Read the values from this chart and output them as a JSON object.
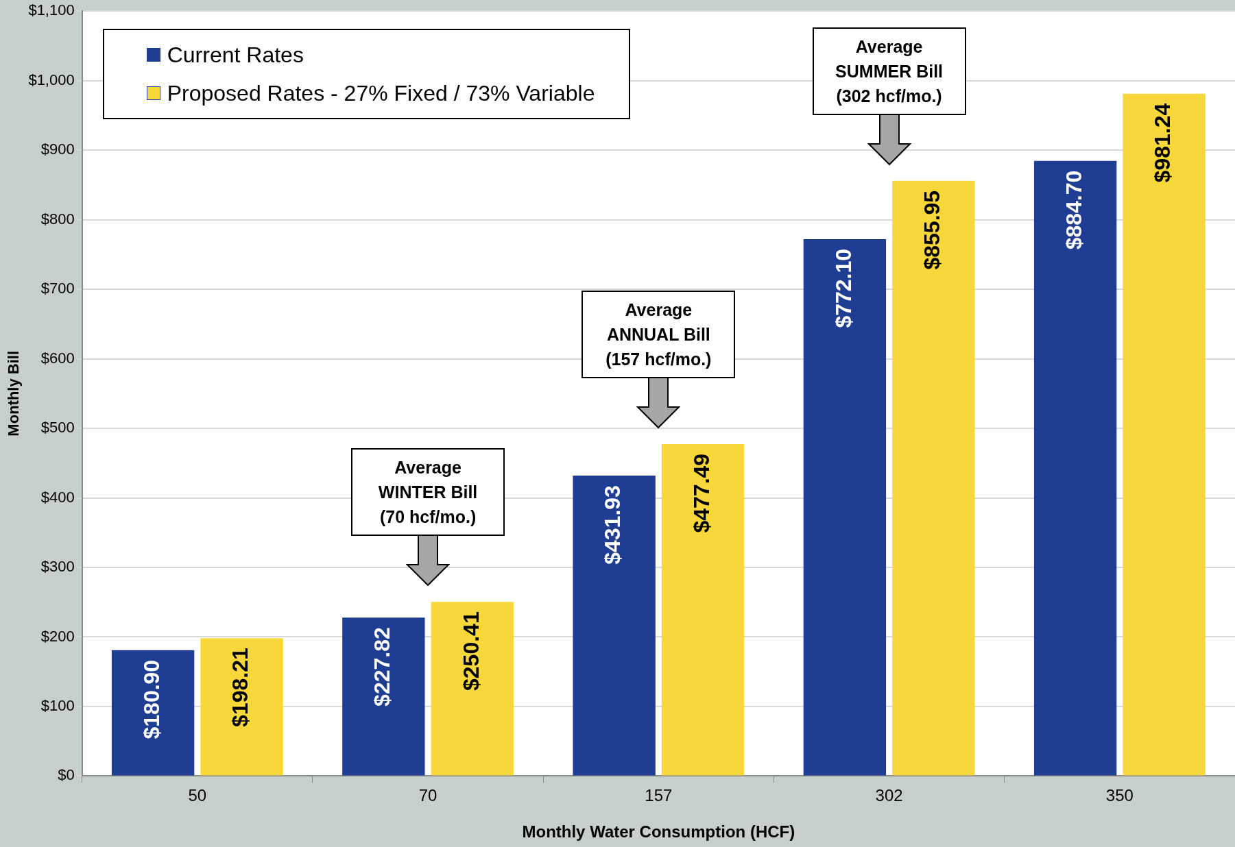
{
  "chart_data": {
    "type": "bar",
    "xlabel": "Monthly Water Consumption (HCF)",
    "ylabel": "Monthly Bill",
    "categories": [
      "50",
      "70",
      "157",
      "302",
      "350"
    ],
    "series": [
      {
        "name": "Current Rates",
        "color": "#1f3e93",
        "values": [
          180.9,
          227.82,
          431.93,
          772.1,
          884.7
        ]
      },
      {
        "name": "Proposed Rates - 27% Fixed / 73% Variable",
        "color": "#f8d73b",
        "values": [
          198.21,
          250.41,
          477.49,
          855.95,
          981.24
        ]
      }
    ],
    "ylim": [
      0,
      1100
    ],
    "yticks": [
      {
        "value": 0,
        "label": "$0"
      },
      {
        "value": 100,
        "label": "$100"
      },
      {
        "value": 200,
        "label": "$200"
      },
      {
        "value": 300,
        "label": "$300"
      },
      {
        "value": 400,
        "label": "$400"
      },
      {
        "value": 500,
        "label": "$500"
      },
      {
        "value": 600,
        "label": "$600"
      },
      {
        "value": 700,
        "label": "$700"
      },
      {
        "value": 800,
        "label": "$800"
      },
      {
        "value": 900,
        "label": "$900"
      },
      {
        "value": 1000,
        "label": "$1,000"
      },
      {
        "value": 1100,
        "label": "$1,100"
      }
    ],
    "grid": "y",
    "legend": "top left",
    "value_labels": [
      [
        "$180.90",
        "$227.82",
        "$431.93",
        "$772.10",
        "$884.70"
      ],
      [
        "$198.21",
        "$250.41",
        "$477.49",
        "$855.95",
        "$981.24"
      ]
    ],
    "annotations": [
      "Average\nWINTER Bill\n(70 hcf/mo.)",
      "Average\nANNUAL Bill\n(157 hcf/mo.)",
      "Average\nSUMMER Bill\n(302 hcf/mo.)"
    ]
  }
}
